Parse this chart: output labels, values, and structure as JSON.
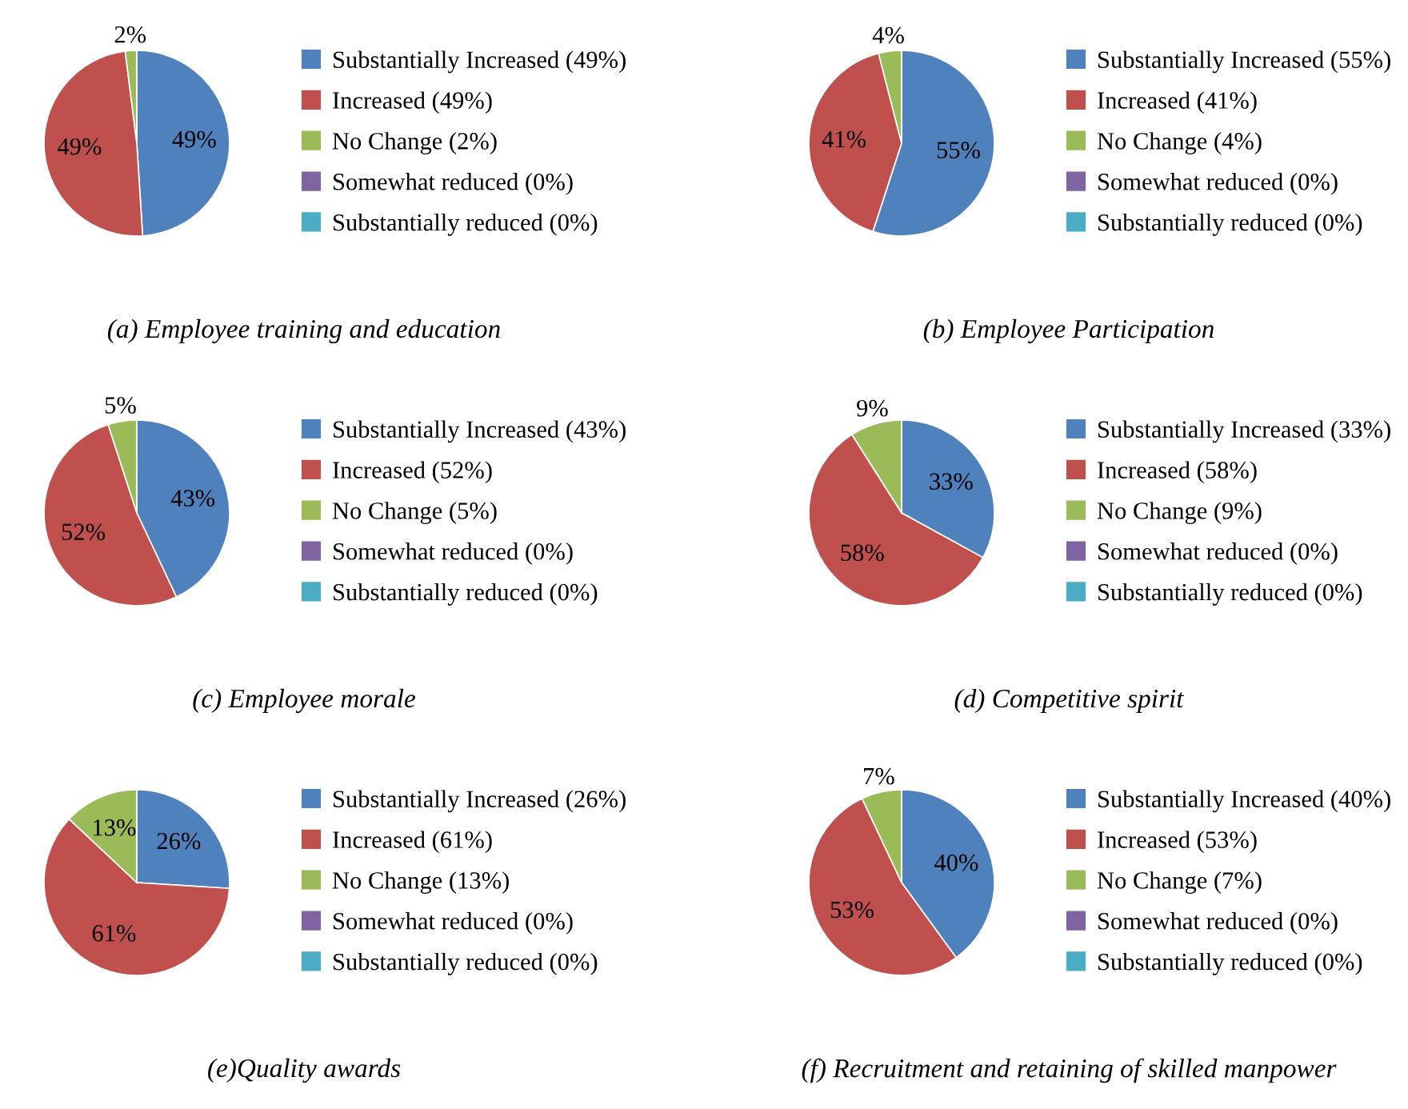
{
  "chart_data": [
    {
      "type": "pie",
      "title": "(a) Employee training and education",
      "legend": "right",
      "categories": [
        "Substantially Increased (49%)",
        "Increased (49%)",
        "No Change (2%)",
        "Somewhat reduced (0%)",
        "Substantially reduced (0%)"
      ],
      "values": [
        49,
        49,
        2,
        0,
        0
      ],
      "value_labels": [
        "49%",
        "49%",
        "2%",
        null,
        null
      ],
      "colors": [
        "#4f81bd",
        "#c0504d",
        "#9bbb59",
        "#8064a2",
        "#4bacc6"
      ]
    },
    {
      "type": "pie",
      "title": "(b) Employee Participation",
      "legend": "right",
      "categories": [
        "Substantially Increased (55%)",
        "Increased (41%)",
        "No Change (4%)",
        "Somewhat reduced (0%)",
        "Substantially reduced (0%)"
      ],
      "values": [
        55,
        41,
        4,
        0,
        0
      ],
      "value_labels": [
        "55%",
        "41%",
        "4%",
        null,
        null
      ],
      "colors": [
        "#4f81bd",
        "#c0504d",
        "#9bbb59",
        "#8064a2",
        "#4bacc6"
      ]
    },
    {
      "type": "pie",
      "title": "(c) Employee morale",
      "legend": "right",
      "categories": [
        "Substantially Increased (43%)",
        "Increased (52%)",
        "No Change (5%)",
        "Somewhat reduced (0%)",
        "Substantially reduced (0%)"
      ],
      "values": [
        43,
        52,
        5,
        0,
        0
      ],
      "value_labels": [
        "43%",
        "52%",
        "5%",
        null,
        null
      ],
      "colors": [
        "#4f81bd",
        "#c0504d",
        "#9bbb59",
        "#8064a2",
        "#4bacc6"
      ]
    },
    {
      "type": "pie",
      "title": "(d) Competitive spirit",
      "legend": "right",
      "categories": [
        "Substantially Increased (33%)",
        "Increased (58%)",
        "No Change (9%)",
        "Somewhat reduced (0%)",
        "Substantially reduced (0%)"
      ],
      "values": [
        33,
        58,
        9,
        0,
        0
      ],
      "value_labels": [
        "33%",
        "58%",
        "9%",
        null,
        null
      ],
      "colors": [
        "#4f81bd",
        "#c0504d",
        "#9bbb59",
        "#8064a2",
        "#4bacc6"
      ]
    },
    {
      "type": "pie",
      "title": "(e)Quality awards",
      "legend": "right",
      "categories": [
        "Substantially Increased (26%)",
        "Increased (61%)",
        "No Change (13%)",
        "Somewhat reduced (0%)",
        "Substantially reduced (0%)"
      ],
      "values": [
        26,
        61,
        13,
        0,
        0
      ],
      "value_labels": [
        "26%",
        "61%",
        "13%",
        null,
        null
      ],
      "colors": [
        "#4f81bd",
        "#c0504d",
        "#9bbb59",
        "#8064a2",
        "#4bacc6"
      ]
    },
    {
      "type": "pie",
      "title": "(f) Recruitment and retaining of skilled manpower",
      "legend": "right",
      "categories": [
        "Substantially Increased (40%)",
        "Increased (53%)",
        "No Change (7%)",
        "Somewhat reduced (0%)",
        "Substantially reduced (0%)"
      ],
      "values": [
        40,
        53,
        7,
        0,
        0
      ],
      "value_labels": [
        "40%",
        "53%",
        "7%",
        null,
        null
      ],
      "colors": [
        "#4f81bd",
        "#c0504d",
        "#9bbb59",
        "#8064a2",
        "#4bacc6"
      ]
    }
  ]
}
